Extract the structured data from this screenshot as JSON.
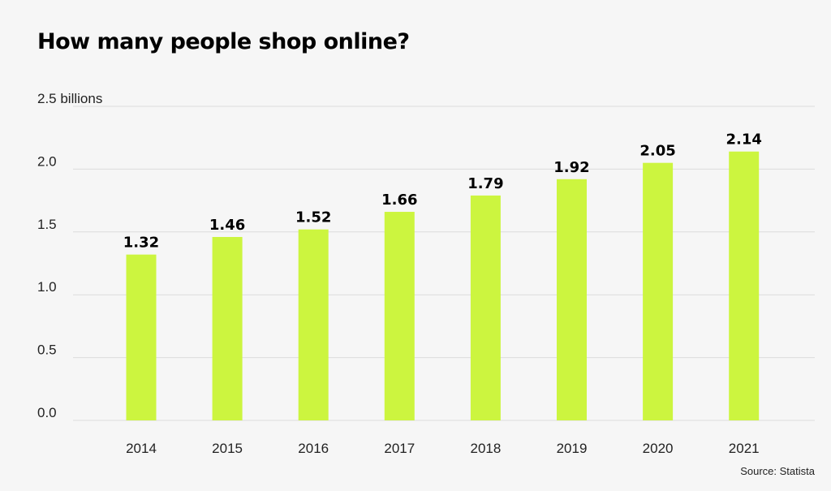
{
  "chart_data": {
    "type": "bar",
    "title": "How many people shop online?",
    "categories": [
      "2014",
      "2015",
      "2016",
      "2017",
      "2018",
      "2019",
      "2020",
      "2021"
    ],
    "values": [
      1.32,
      1.46,
      1.52,
      1.66,
      1.79,
      1.92,
      2.05,
      2.14
    ],
    "value_labels": [
      "1.32",
      "1.46",
      "1.52",
      "1.66",
      "1.79",
      "1.92",
      "2.05",
      "2.14"
    ],
    "y_ticks": [
      0.0,
      0.5,
      1.0,
      1.5,
      2.0,
      2.5
    ],
    "y_tick_labels": [
      "0.0",
      "0.5",
      "1.0",
      "1.5",
      "2.0",
      "2.5 billions"
    ],
    "ylim": [
      0,
      2.5
    ],
    "xlabel": "",
    "ylabel": "",
    "grid": true,
    "legend": "none",
    "bar_color": "#ccf53f",
    "source": "Source: Statista"
  }
}
